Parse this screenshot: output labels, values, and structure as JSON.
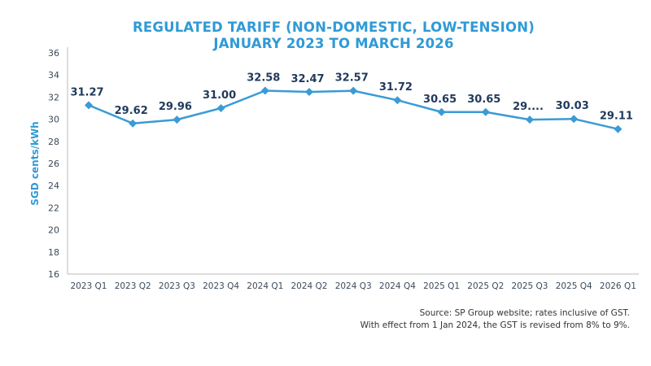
{
  "chart_data": {
    "type": "line",
    "title_lines": [
      "REGULATED TARIFF (NON-DOMESTIC, LOW-TENSION)",
      "JANUARY 2023 TO MARCH 2026"
    ],
    "xlabel": "",
    "ylabel": "SGD cents/kWh",
    "ylim": [
      16,
      36
    ],
    "yticks": [
      16,
      18,
      20,
      22,
      24,
      26,
      28,
      30,
      32,
      34,
      36
    ],
    "grid": false,
    "categories": [
      "2023 Q1",
      "2023 Q2",
      "2023 Q3",
      "2023 Q4",
      "2024 Q1",
      "2024 Q2",
      "2024 Q3",
      "2024 Q4",
      "2025 Q1",
      "2025 Q2",
      "2025 Q3",
      "2025 Q4",
      "2026 Q1"
    ],
    "values": [
      31.27,
      29.62,
      29.96,
      31.0,
      32.58,
      32.47,
      32.57,
      31.72,
      30.65,
      30.65,
      29.96,
      30.03,
      29.11
    ],
    "data_labels": [
      "31.27",
      "29.62",
      "29.96",
      "31.00",
      "32.58",
      "32.47",
      "32.57",
      "31.72",
      "30.65",
      "30.65",
      "29....",
      "30.03",
      "29.11"
    ],
    "colors": {
      "line": "#3a9bd5",
      "title": "#2f9ad6",
      "labels": "#1f3a5c",
      "axis_text": "#3a4a5a"
    }
  },
  "footer": {
    "source_line1": "Source: SP Group website; rates inclusive of GST.",
    "source_line2": "With effect from 1 Jan 2024, the GST is revised from 8% to 9%."
  }
}
